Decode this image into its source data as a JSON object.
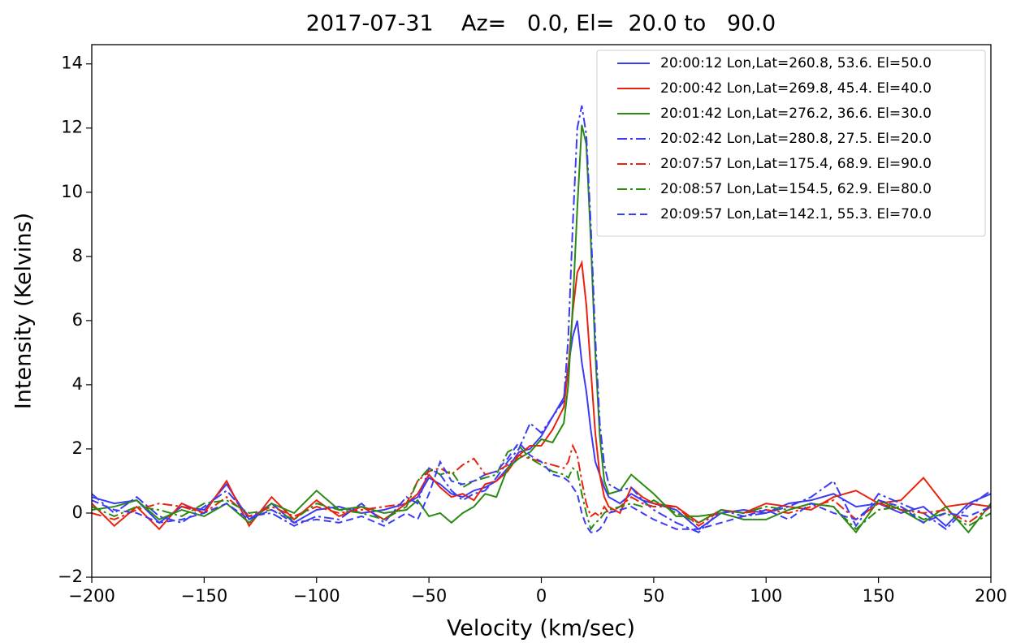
{
  "chart_data": {
    "type": "line",
    "title": "2017-07-31    Az=   0.0, El=  20.0 to   90.0",
    "x_label": "Velocity (km/sec)",
    "y_label": "Intensity (Kelvins)",
    "xlim": [
      -200,
      200
    ],
    "ylim": [
      -2,
      14.6
    ],
    "xticks": [
      {
        "value": -200,
        "label": "−200"
      },
      {
        "value": -150,
        "label": "−150"
      },
      {
        "value": -100,
        "label": "−100"
      },
      {
        "value": -50,
        "label": "−50"
      },
      0,
      50,
      100,
      150,
      200
    ],
    "yticks": [
      {
        "value": -2,
        "label": "−2"
      },
      0,
      2,
      4,
      6,
      8,
      10,
      12,
      14
    ],
    "grid": false,
    "legend": "upper right",
    "x": [
      -200,
      -190,
      -180,
      -170,
      -160,
      -150,
      -140,
      -130,
      -120,
      -110,
      -100,
      -90,
      -80,
      -70,
      -60,
      -55,
      -50,
      -45,
      -40,
      -35,
      -30,
      -25,
      -20,
      -15,
      -10,
      -5,
      0,
      5,
      10,
      12,
      14,
      16,
      18,
      20,
      22,
      24,
      26,
      28,
      30,
      35,
      40,
      45,
      50,
      60,
      70,
      80,
      90,
      100,
      110,
      120,
      130,
      140,
      150,
      160,
      170,
      180,
      190,
      200
    ],
    "series": [
      {
        "name": "20:00:12 Lon,Lat=260.8, 53.6. El=50.0",
        "color": "#3b3bf5",
        "linestyle": "solid",
        "values": [
          0.5,
          0.3,
          0.4,
          -0.3,
          0.2,
          0.1,
          0.9,
          -0.2,
          0.3,
          -0.3,
          0.1,
          0.2,
          0.0,
          0.1,
          0.3,
          0.5,
          1.1,
          0.9,
          0.6,
          0.5,
          0.7,
          0.8,
          1.0,
          1.4,
          1.9,
          2.0,
          2.4,
          3.0,
          3.6,
          4.6,
          5.5,
          6.0,
          4.7,
          3.8,
          2.6,
          1.6,
          1.2,
          0.8,
          0.5,
          0.3,
          0.6,
          0.4,
          0.3,
          0.1,
          -0.5,
          0.0,
          0.1,
          0.0,
          0.3,
          0.4,
          0.6,
          0.2,
          0.3,
          0.0,
          0.2,
          -0.4,
          0.3,
          0.6
        ]
      },
      {
        "name": "20:00:42 Lon,Lat=269.8, 45.4. El=40.0",
        "color": "#e8220e",
        "linestyle": "solid",
        "values": [
          0.3,
          -0.4,
          0.2,
          -0.5,
          0.3,
          0.0,
          1.0,
          -0.4,
          0.5,
          -0.2,
          0.4,
          -0.1,
          0.2,
          -0.2,
          0.3,
          0.6,
          1.2,
          0.8,
          0.5,
          0.6,
          0.4,
          0.9,
          1.0,
          1.3,
          1.8,
          2.1,
          2.1,
          2.6,
          3.3,
          4.5,
          6.3,
          7.5,
          7.8,
          6.5,
          4.5,
          2.5,
          1.2,
          0.5,
          0.2,
          0.0,
          0.8,
          0.5,
          0.3,
          0.2,
          -0.3,
          0.1,
          0.0,
          0.3,
          0.2,
          0.1,
          0.5,
          0.7,
          0.3,
          0.4,
          1.1,
          0.2,
          0.3,
          0.2
        ]
      },
      {
        "name": "20:01:42 Lon,Lat=276.2, 36.6. El=30.0",
        "color": "#2a8a12",
        "linestyle": "solid",
        "values": [
          0.1,
          0.2,
          0.4,
          -0.2,
          0.1,
          -0.1,
          0.3,
          -0.3,
          0.3,
          0.0,
          0.7,
          0.1,
          0.2,
          0.0,
          0.1,
          0.4,
          -0.1,
          0.0,
          -0.3,
          0.0,
          0.2,
          0.6,
          0.5,
          1.4,
          1.7,
          1.9,
          2.3,
          2.2,
          2.8,
          4.0,
          6.5,
          9.5,
          12.1,
          11.5,
          8.5,
          5.0,
          2.4,
          1.0,
          0.6,
          0.7,
          1.2,
          0.9,
          0.6,
          -0.1,
          -0.1,
          0.0,
          -0.2,
          -0.2,
          0.1,
          0.3,
          0.2,
          -0.6,
          0.4,
          0.1,
          -0.3,
          0.2,
          -0.6,
          0.3
        ]
      },
      {
        "name": "20:02:42 Lon,Lat=280.8, 27.5. El=20.0",
        "color": "#3b3bf5",
        "linestyle": "dashdot",
        "values": [
          0.6,
          0.0,
          0.5,
          -0.1,
          -0.3,
          0.2,
          0.7,
          -0.1,
          0.0,
          -0.4,
          -0.1,
          -0.2,
          0.3,
          -0.3,
          0.5,
          0.3,
          1.4,
          1.2,
          0.7,
          0.4,
          0.6,
          0.7,
          1.1,
          1.6,
          2.0,
          2.8,
          2.5,
          3.0,
          3.5,
          5.5,
          9.0,
          12.0,
          12.7,
          11.8,
          9.0,
          5.5,
          2.8,
          1.5,
          0.9,
          0.7,
          0.8,
          0.4,
          0.1,
          -0.3,
          -0.6,
          0.1,
          -0.1,
          0.0,
          0.2,
          0.5,
          1.0,
          -0.4,
          0.6,
          0.3,
          0.0,
          -0.5,
          0.2,
          0.7
        ]
      },
      {
        "name": "20:07:57 Lon,Lat=175.4, 68.9. El=90.0",
        "color": "#e8220e",
        "linestyle": "dashdot",
        "values": [
          0.0,
          -0.2,
          0.1,
          0.3,
          0.2,
          0.0,
          0.5,
          -0.1,
          0.2,
          -0.1,
          0.2,
          0.0,
          0.1,
          0.2,
          0.3,
          1.0,
          1.3,
          1.4,
          1.2,
          1.5,
          1.7,
          1.2,
          1.3,
          1.5,
          1.8,
          1.7,
          1.6,
          1.5,
          1.4,
          1.6,
          2.1,
          1.8,
          1.0,
          0.3,
          -0.1,
          0.0,
          -0.1,
          0.2,
          0.0,
          0.2,
          0.5,
          0.3,
          0.2,
          0.2,
          -0.4,
          0.1,
          0.0,
          0.1,
          0.0,
          0.2,
          0.4,
          -0.2,
          0.3,
          0.1,
          0.0,
          0.1,
          -0.3,
          0.2
        ]
      },
      {
        "name": "20:08:57 Lon,Lat=154.5, 62.9. El=80.0",
        "color": "#2a8a12",
        "linestyle": "dashdot",
        "values": [
          0.2,
          -0.1,
          0.2,
          0.1,
          -0.1,
          0.3,
          0.4,
          0.0,
          0.1,
          -0.2,
          0.3,
          0.1,
          0.0,
          -0.2,
          0.2,
          1.0,
          1.4,
          1.2,
          1.3,
          0.8,
          1.0,
          1.1,
          1.2,
          1.9,
          2.1,
          1.7,
          1.5,
          1.3,
          1.2,
          1.1,
          1.4,
          1.3,
          0.6,
          0.0,
          -0.5,
          -0.3,
          -0.2,
          0.0,
          0.1,
          0.2,
          0.3,
          0.2,
          0.4,
          0.0,
          -0.3,
          0.1,
          0.0,
          0.2,
          0.1,
          0.3,
          0.2,
          -0.5,
          0.1,
          0.2,
          -0.2,
          0.0,
          -0.4,
          0.0
        ]
      },
      {
        "name": "20:09:57 Lon,Lat=142.1, 55.3. El=70.0",
        "color": "#3b3bf5",
        "linestyle": "dashed",
        "values": [
          0.4,
          0.1,
          0.0,
          -0.3,
          -0.2,
          0.0,
          0.3,
          -0.2,
          0.1,
          -0.3,
          -0.2,
          -0.3,
          -0.1,
          -0.4,
          0.0,
          -0.2,
          0.6,
          1.6,
          1.0,
          0.9,
          1.0,
          1.2,
          1.3,
          1.7,
          2.2,
          1.8,
          1.6,
          1.2,
          1.1,
          1.0,
          0.8,
          0.6,
          0.0,
          -0.4,
          -0.6,
          -0.6,
          -0.5,
          -0.3,
          0.0,
          0.1,
          0.2,
          0.0,
          -0.2,
          -0.5,
          -0.5,
          -0.3,
          -0.1,
          0.1,
          -0.2,
          0.3,
          0.0,
          -0.2,
          0.4,
          0.2,
          -0.3,
          0.0,
          -0.1,
          0.2
        ]
      }
    ]
  }
}
